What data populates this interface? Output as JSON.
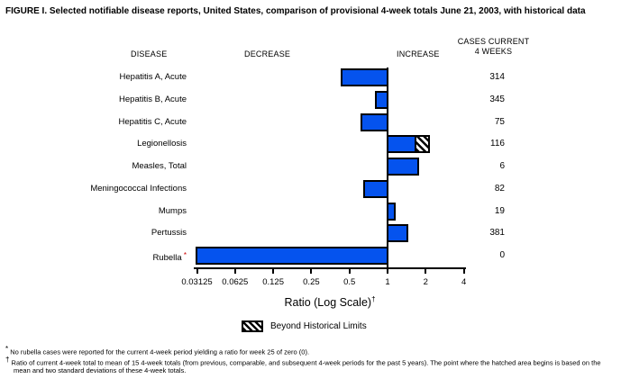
{
  "figure": {
    "title": "FIGURE I. Selected notifiable disease reports, United States, comparison of provisional 4-week totals June 21, 2003, with historical data",
    "headers": {
      "disease": "DISEASE",
      "decrease": "DECREASE",
      "increase": "INCREASE",
      "cases_line1": "CASES CURRENT",
      "cases_line2": "4 WEEKS"
    }
  },
  "chart_data": {
    "type": "bar",
    "orientation": "horizontal",
    "xscale": "log2",
    "xlabel": "Ratio (Log Scale)",
    "xlabel_marker": "†",
    "baseline": 1,
    "xlim": [
      0.03125,
      4
    ],
    "ticks": [
      0.03125,
      0.0625,
      0.125,
      0.25,
      0.5,
      1,
      2,
      4
    ],
    "tick_labels": [
      "0.03125",
      "0.0625",
      "0.125",
      "0.25",
      "0.5",
      "1",
      "2",
      "4"
    ],
    "bar_color": "#0553ee",
    "legend": {
      "label": "Beyond Historical Limits",
      "swatch": "black-diagonal-hatch"
    },
    "rows": [
      {
        "disease": "Hepatitis A, Acute",
        "cases": "314",
        "ratio": 0.43,
        "hatch_from": null,
        "marker": ""
      },
      {
        "disease": "Hepatitis B, Acute",
        "cases": "345",
        "ratio": 0.8,
        "hatch_from": null,
        "marker": ""
      },
      {
        "disease": "Hepatitis C, Acute",
        "cases": "75",
        "ratio": 0.61,
        "hatch_from": null,
        "marker": ""
      },
      {
        "disease": "Legionellosis",
        "cases": "116",
        "ratio": 2.15,
        "hatch_from": 1.69,
        "marker": ""
      },
      {
        "disease": "Measles, Total",
        "cases": "6",
        "ratio": 1.78,
        "hatch_from": null,
        "marker": ""
      },
      {
        "disease": "Meningococcal Infections",
        "cases": "82",
        "ratio": 0.64,
        "hatch_from": null,
        "marker": ""
      },
      {
        "disease": "Mumps",
        "cases": "19",
        "ratio": 1.15,
        "hatch_from": null,
        "marker": ""
      },
      {
        "disease": "Pertussis",
        "cases": "381",
        "ratio": 1.45,
        "hatch_from": null,
        "marker": ""
      },
      {
        "disease": "Rubella",
        "cases": "0",
        "ratio": 0,
        "hatch_from": null,
        "marker": "*"
      }
    ]
  },
  "footnotes": [
    {
      "marker": "*",
      "text": "No rubella cases were reported for the current 4-week period yielding a ratio for week 25 of zero (0)."
    },
    {
      "marker": "†",
      "text": "Ratio of current 4-week total to mean of 15 4-week totals (from previous, comparable, and subsequent 4-week periods for the past 5 years). The point where the hatched area begins is based on the mean and two standard deviations of these 4-week totals."
    }
  ]
}
